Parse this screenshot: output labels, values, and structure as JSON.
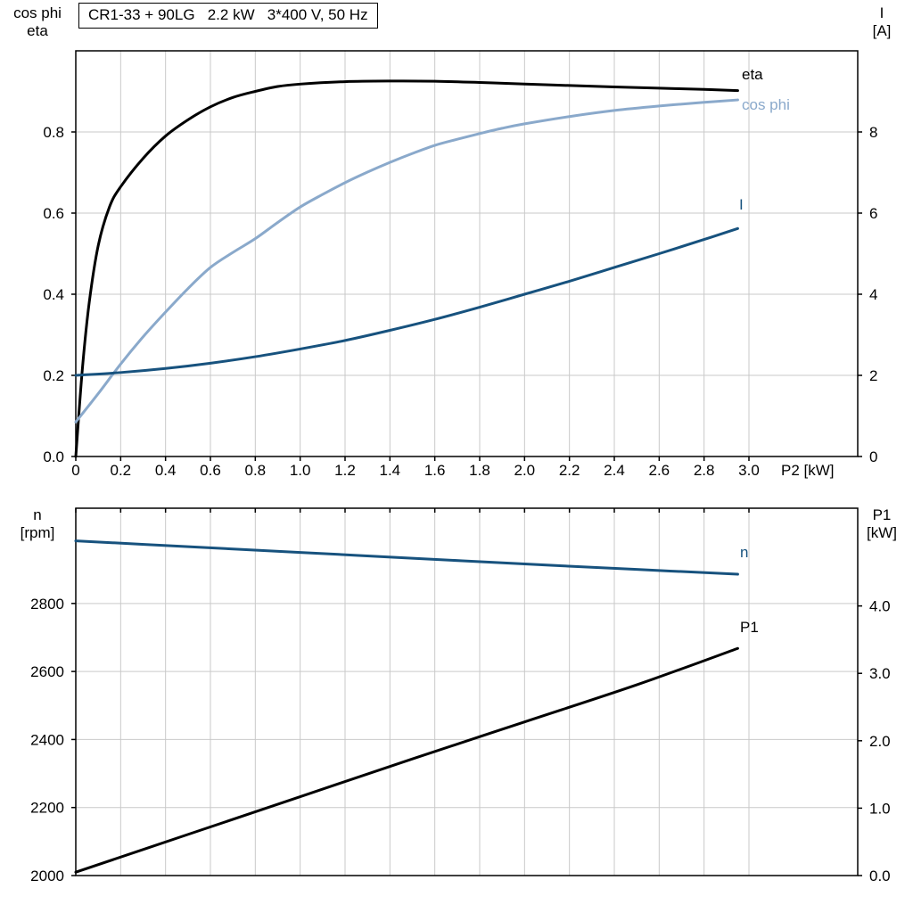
{
  "colors": {
    "black": "#000000",
    "light_blue": "#8aa9cb",
    "dark_blue": "#17527e",
    "grid": "#c9c9c9",
    "frame": "#000000"
  },
  "chart_data": [
    {
      "type": "line",
      "title": "CR1-33 + 90LG   2.2 kW   3*400 V, 50 Hz",
      "grid": true,
      "x_axis": {
        "label": "P2 [kW]",
        "min": 0,
        "max": 3.0,
        "ticks": [
          0,
          0.2,
          0.4,
          0.6,
          0.8,
          1.0,
          1.2,
          1.4,
          1.6,
          1.8,
          2.0,
          2.2,
          2.4,
          2.6,
          2.8,
          3.0
        ],
        "tick_labels": [
          "0",
          "0.2",
          "0.4",
          "0.6",
          "0.8",
          "1.0",
          "1.2",
          "1.4",
          "1.6",
          "1.8",
          "2.0",
          "2.2",
          "2.4",
          "2.6",
          "2.8",
          "3.0"
        ]
      },
      "y_left": {
        "label_lines": [
          "cos phi",
          "eta"
        ],
        "min": 0,
        "max": 1.0,
        "ticks": [
          0,
          0.2,
          0.4,
          0.6,
          0.8
        ],
        "tick_labels": [
          "0.0",
          "0.2",
          "0.4",
          "0.6",
          "0.8"
        ]
      },
      "y_right": {
        "label_lines": [
          "I",
          "[A]"
        ],
        "min": 0,
        "max": 10,
        "ticks": [
          0,
          2,
          4,
          6,
          8
        ],
        "tick_labels": [
          "0",
          "2",
          "4",
          "6",
          "8"
        ]
      },
      "series": [
        {
          "name": "eta",
          "axis": "left",
          "color_key": "black",
          "points": [
            [
              0,
              0
            ],
            [
              0.03,
              0.22
            ],
            [
              0.06,
              0.38
            ],
            [
              0.1,
              0.52
            ],
            [
              0.15,
              0.615
            ],
            [
              0.2,
              0.665
            ],
            [
              0.3,
              0.735
            ],
            [
              0.4,
              0.79
            ],
            [
              0.5,
              0.83
            ],
            [
              0.6,
              0.862
            ],
            [
              0.7,
              0.885
            ],
            [
              0.8,
              0.9
            ],
            [
              0.9,
              0.912
            ],
            [
              1.0,
              0.918
            ],
            [
              1.2,
              0.924
            ],
            [
              1.4,
              0.9255
            ],
            [
              1.6,
              0.925
            ],
            [
              1.8,
              0.922
            ],
            [
              2.0,
              0.918
            ],
            [
              2.2,
              0.9145
            ],
            [
              2.4,
              0.911
            ],
            [
              2.6,
              0.908
            ],
            [
              2.8,
              0.905
            ],
            [
              2.95,
              0.902
            ]
          ]
        },
        {
          "name": "cos phi",
          "axis": "left",
          "color_key": "light_blue",
          "points": [
            [
              0,
              0.085
            ],
            [
              0.1,
              0.155
            ],
            [
              0.2,
              0.228
            ],
            [
              0.3,
              0.295
            ],
            [
              0.4,
              0.356
            ],
            [
              0.5,
              0.414
            ],
            [
              0.6,
              0.466
            ],
            [
              0.7,
              0.503
            ],
            [
              0.8,
              0.537
            ],
            [
              0.9,
              0.577
            ],
            [
              1.0,
              0.615
            ],
            [
              1.1,
              0.646
            ],
            [
              1.2,
              0.675
            ],
            [
              1.3,
              0.701
            ],
            [
              1.4,
              0.725
            ],
            [
              1.5,
              0.747
            ],
            [
              1.6,
              0.767
            ],
            [
              1.7,
              0.782
            ],
            [
              1.8,
              0.796
            ],
            [
              1.9,
              0.809
            ],
            [
              2.0,
              0.82
            ],
            [
              2.2,
              0.838
            ],
            [
              2.4,
              0.853
            ],
            [
              2.6,
              0.864
            ],
            [
              2.8,
              0.873
            ],
            [
              2.95,
              0.879
            ]
          ]
        },
        {
          "name": "I",
          "axis": "right",
          "color_key": "dark_blue",
          "points": [
            [
              0,
              2.0
            ],
            [
              0.2,
              2.07
            ],
            [
              0.4,
              2.17
            ],
            [
              0.6,
              2.3
            ],
            [
              0.8,
              2.46
            ],
            [
              1.0,
              2.65
            ],
            [
              1.2,
              2.86
            ],
            [
              1.4,
              3.11
            ],
            [
              1.6,
              3.38
            ],
            [
              1.8,
              3.68
            ],
            [
              2.0,
              4.0
            ],
            [
              2.2,
              4.32
            ],
            [
              2.4,
              4.66
            ],
            [
              2.6,
              5.0
            ],
            [
              2.8,
              5.35
            ],
            [
              2.95,
              5.62
            ]
          ]
        }
      ]
    },
    {
      "type": "line",
      "grid": true,
      "x_axis": {
        "label": "",
        "min": 0,
        "max": 3.0,
        "ticks": [
          0,
          0.2,
          0.4,
          0.6,
          0.8,
          1.0,
          1.2,
          1.4,
          1.6,
          1.8,
          2.0,
          2.2,
          2.4,
          2.6,
          2.8,
          3.0
        ],
        "tick_labels": []
      },
      "y_left": {
        "label_lines": [
          "n",
          "[rpm]"
        ],
        "min": 2000,
        "max": 3080,
        "ticks": [
          2000,
          2200,
          2400,
          2600,
          2800
        ],
        "tick_labels": [
          "2000",
          "2200",
          "2400",
          "2600",
          "2800"
        ]
      },
      "y_right": {
        "label_lines": [
          "P1",
          "[kW]"
        ],
        "min": 0,
        "max": 5.45,
        "ticks": [
          0,
          1,
          2,
          3,
          4
        ],
        "tick_labels": [
          "0.0",
          "1.0",
          "2.0",
          "3.0",
          "4.0"
        ]
      },
      "series": [
        {
          "name": "n",
          "axis": "left",
          "color_key": "dark_blue",
          "points": [
            [
              0,
              2984
            ],
            [
              0.5,
              2967
            ],
            [
              1.0,
              2950
            ],
            [
              1.5,
              2933
            ],
            [
              2.0,
              2916
            ],
            [
              2.5,
              2900
            ],
            [
              2.95,
              2886
            ]
          ]
        },
        {
          "name": "P1",
          "axis": "right",
          "color_key": "black",
          "points": [
            [
              0,
              0.05
            ],
            [
              0.5,
              0.61
            ],
            [
              1.0,
              1.17
            ],
            [
              1.5,
              1.73
            ],
            [
              2.0,
              2.28
            ],
            [
              2.5,
              2.83
            ],
            [
              2.95,
              3.37
            ]
          ]
        }
      ]
    }
  ]
}
